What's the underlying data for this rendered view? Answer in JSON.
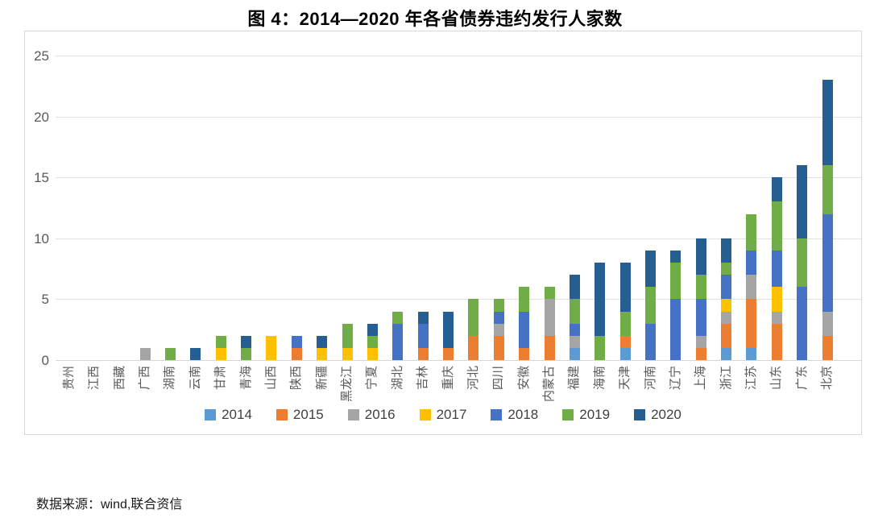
{
  "page": {
    "source_note": "数据来源：wind,联合资信"
  },
  "chart_data": {
    "type": "bar",
    "stacked": true,
    "title": "图 4：2014—2020 年各省债券违约发行人家数",
    "xlabel": "",
    "ylabel": "",
    "ylim": [
      0,
      25
    ],
    "yticks": [
      0,
      5,
      10,
      15,
      20,
      25
    ],
    "grid": true,
    "legend_position": "bottom",
    "gridline_color": "#e2e2e2",
    "categories": [
      "贵州",
      "江西",
      "西藏",
      "广西",
      "湖南",
      "云南",
      "甘肃",
      "青海",
      "山西",
      "陕西",
      "新疆",
      "黑龙江",
      "宁夏",
      "湖北",
      "吉林",
      "重庆",
      "河北",
      "四川",
      "安徽",
      "内蒙古",
      "福建",
      "海南",
      "天津",
      "河南",
      "辽宁",
      "上海",
      "浙江",
      "江苏",
      "山东",
      "广东",
      "北京"
    ],
    "series": [
      {
        "name": "2014",
        "color": "#5B9BD5",
        "values": [
          0,
          0,
          0,
          0,
          0,
          0,
          0,
          0,
          0,
          0,
          0,
          0,
          0,
          0,
          0,
          0,
          0,
          0,
          0,
          0,
          1,
          0,
          1,
          0,
          0,
          0,
          1,
          1,
          0,
          0,
          0
        ]
      },
      {
        "name": "2015",
        "color": "#ED7D31",
        "values": [
          0,
          0,
          0,
          0,
          0,
          0,
          0,
          0,
          0,
          1,
          0,
          0,
          0,
          0,
          1,
          1,
          2,
          2,
          1,
          2,
          0,
          0,
          1,
          0,
          0,
          1,
          2,
          4,
          3,
          0,
          2
        ]
      },
      {
        "name": "2016",
        "color": "#A5A5A5",
        "values": [
          0,
          0,
          0,
          1,
          0,
          0,
          0,
          0,
          0,
          0,
          0,
          0,
          0,
          0,
          0,
          0,
          0,
          1,
          0,
          3,
          1,
          0,
          0,
          0,
          0,
          1,
          1,
          2,
          1,
          0,
          2
        ]
      },
      {
        "name": "2017",
        "color": "#FFC000",
        "values": [
          0,
          0,
          0,
          0,
          0,
          0,
          1,
          0,
          2,
          0,
          1,
          1,
          1,
          0,
          0,
          0,
          0,
          0,
          0,
          0,
          0,
          0,
          0,
          0,
          0,
          0,
          1,
          0,
          2,
          0,
          0
        ]
      },
      {
        "name": "2018",
        "color": "#4472C4",
        "values": [
          0,
          0,
          0,
          0,
          0,
          0,
          0,
          0,
          0,
          1,
          0,
          0,
          0,
          3,
          2,
          0,
          0,
          1,
          3,
          0,
          1,
          0,
          0,
          3,
          5,
          3,
          2,
          2,
          3,
          6,
          8
        ]
      },
      {
        "name": "2019",
        "color": "#70AD47",
        "values": [
          0,
          0,
          0,
          0,
          1,
          0,
          1,
          1,
          0,
          0,
          0,
          2,
          1,
          1,
          0,
          0,
          3,
          1,
          2,
          1,
          2,
          2,
          2,
          3,
          3,
          2,
          1,
          3,
          4,
          4,
          4
        ]
      },
      {
        "name": "2020",
        "color": "#255E91",
        "values": [
          0,
          0,
          0,
          0,
          0,
          1,
          0,
          1,
          0,
          0,
          1,
          0,
          1,
          0,
          1,
          3,
          0,
          0,
          0,
          0,
          2,
          6,
          4,
          3,
          1,
          3,
          2,
          0,
          2,
          6,
          7
        ]
      }
    ]
  }
}
